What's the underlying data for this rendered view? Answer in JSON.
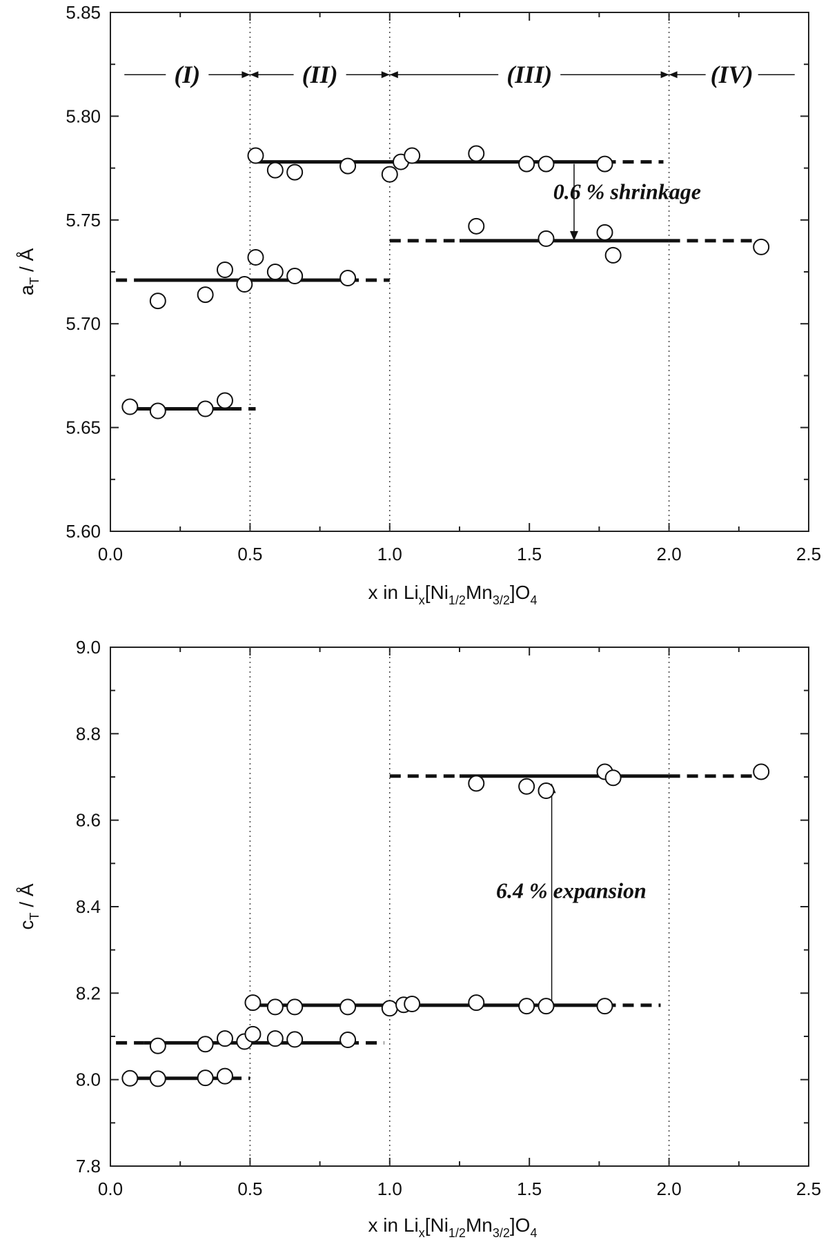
{
  "chart_data": [
    {
      "type": "scatter",
      "ylabel_main": "a",
      "ylabel_sub": "T",
      "ylabel_sep": "/",
      "ylabel_unit": "Å",
      "xlabel_main": "x  in  Li",
      "xlabel_parts": [
        "x",
        "[Ni",
        "1/2",
        "Mn",
        "3/2",
        "]O",
        "4"
      ],
      "xlim": [
        0,
        2.5
      ],
      "ylim": [
        5.6,
        5.85
      ],
      "x_ticks": [
        "0.0",
        "0.5",
        "1.0",
        "1.5",
        "2.0",
        "2.5"
      ],
      "x_tick_values": [
        0,
        0.5,
        1.0,
        1.5,
        2.0,
        2.5
      ],
      "y_ticks": [
        "5.60",
        "5.65",
        "5.70",
        "5.75",
        "5.80",
        "5.85"
      ],
      "y_tick_values": [
        5.6,
        5.65,
        5.7,
        5.75,
        5.8,
        5.85
      ],
      "region_dividers": [
        0.5,
        1.0,
        2.0
      ],
      "regions": [
        {
          "label": "(I)",
          "x_from": 0.05,
          "x_to": 0.5
        },
        {
          "label": "(II)",
          "x_from": 0.5,
          "x_to": 1.0
        },
        {
          "label": "(III)",
          "x_from": 1.0,
          "x_to": 2.0
        },
        {
          "label": "(IV)",
          "x_from": 2.0,
          "x_to": 2.45
        }
      ],
      "points": [
        {
          "x": 0.07,
          "y": 5.66
        },
        {
          "x": 0.17,
          "y": 5.658
        },
        {
          "x": 0.34,
          "y": 5.659
        },
        {
          "x": 0.41,
          "y": 5.663
        },
        {
          "x": 0.17,
          "y": 5.711
        },
        {
          "x": 0.34,
          "y": 5.714
        },
        {
          "x": 0.41,
          "y": 5.726
        },
        {
          "x": 0.48,
          "y": 5.719
        },
        {
          "x": 0.52,
          "y": 5.732
        },
        {
          "x": 0.59,
          "y": 5.725
        },
        {
          "x": 0.66,
          "y": 5.723
        },
        {
          "x": 0.85,
          "y": 5.722
        },
        {
          "x": 0.52,
          "y": 5.781
        },
        {
          "x": 0.59,
          "y": 5.774
        },
        {
          "x": 0.66,
          "y": 5.773
        },
        {
          "x": 0.85,
          "y": 5.776
        },
        {
          "x": 1.0,
          "y": 5.772
        },
        {
          "x": 1.04,
          "y": 5.778
        },
        {
          "x": 1.08,
          "y": 5.781
        },
        {
          "x": 1.31,
          "y": 5.782
        },
        {
          "x": 1.49,
          "y": 5.777
        },
        {
          "x": 1.56,
          "y": 5.777
        },
        {
          "x": 1.77,
          "y": 5.777
        },
        {
          "x": 1.31,
          "y": 5.747
        },
        {
          "x": 1.56,
          "y": 5.741
        },
        {
          "x": 1.77,
          "y": 5.744
        },
        {
          "x": 1.8,
          "y": 5.733
        },
        {
          "x": 2.33,
          "y": 5.737
        }
      ],
      "fits": [
        {
          "y": 5.659,
          "solid": [
            0.05,
            0.43
          ],
          "dash": [
            0.43,
            0.52
          ]
        },
        {
          "y": 5.721,
          "solid": [
            0.1,
            0.85
          ],
          "dash": [
            0.02,
            0.1,
            0.85,
            1.0
          ]
        },
        {
          "y": 5.778,
          "solid": [
            0.52,
            1.77
          ],
          "dash": [
            1.77,
            1.98
          ]
        },
        {
          "y": 5.74,
          "solid": [
            1.25,
            2.0
          ],
          "dash": [
            1.0,
            1.25,
            2.0,
            2.32
          ]
        }
      ],
      "annotation": {
        "text": "0.6 % shrinkage",
        "x": 1.85,
        "y": 5.76,
        "arrow_x": 1.66,
        "arrow_from": 5.777,
        "arrow_to": 5.74
      }
    },
    {
      "type": "scatter",
      "ylabel_main": "c",
      "ylabel_sub": "T",
      "ylabel_sep": "/",
      "ylabel_unit": "Å",
      "xlabel_main": "x  in  Li",
      "xlabel_parts": [
        "x",
        "[Ni",
        "1/2",
        "Mn",
        "3/2",
        "]O",
        "4"
      ],
      "xlim": [
        0,
        2.5
      ],
      "ylim": [
        7.8,
        9.0
      ],
      "x_ticks": [
        "0.0",
        "0.5",
        "1.0",
        "1.5",
        "2.0",
        "2.5"
      ],
      "x_tick_values": [
        0,
        0.5,
        1.0,
        1.5,
        2.0,
        2.5
      ],
      "y_ticks": [
        "7.8",
        "8.0",
        "8.2",
        "8.4",
        "8.6",
        "8.8",
        "9.0"
      ],
      "y_tick_values": [
        7.8,
        8.0,
        8.2,
        8.4,
        8.6,
        8.8,
        9.0
      ],
      "region_dividers": [
        0.5,
        1.0,
        2.0
      ],
      "points": [
        {
          "x": 0.07,
          "y": 8.003
        },
        {
          "x": 0.17,
          "y": 8.002
        },
        {
          "x": 0.34,
          "y": 8.004
        },
        {
          "x": 0.41,
          "y": 8.008
        },
        {
          "x": 0.17,
          "y": 8.078
        },
        {
          "x": 0.34,
          "y": 8.082
        },
        {
          "x": 0.41,
          "y": 8.095
        },
        {
          "x": 0.48,
          "y": 8.088
        },
        {
          "x": 0.51,
          "y": 8.105
        },
        {
          "x": 0.59,
          "y": 8.095
        },
        {
          "x": 0.66,
          "y": 8.093
        },
        {
          "x": 0.85,
          "y": 8.092
        },
        {
          "x": 0.51,
          "y": 8.178
        },
        {
          "x": 0.59,
          "y": 8.168
        },
        {
          "x": 0.66,
          "y": 8.168
        },
        {
          "x": 0.85,
          "y": 8.168
        },
        {
          "x": 1.0,
          "y": 8.165
        },
        {
          "x": 1.05,
          "y": 8.173
        },
        {
          "x": 1.08,
          "y": 8.175
        },
        {
          "x": 1.31,
          "y": 8.178
        },
        {
          "x": 1.49,
          "y": 8.17
        },
        {
          "x": 1.56,
          "y": 8.17
        },
        {
          "x": 1.77,
          "y": 8.17
        },
        {
          "x": 1.31,
          "y": 8.685
        },
        {
          "x": 1.49,
          "y": 8.678
        },
        {
          "x": 1.56,
          "y": 8.668
        },
        {
          "x": 1.77,
          "y": 8.712
        },
        {
          "x": 1.8,
          "y": 8.698
        },
        {
          "x": 2.33,
          "y": 8.712
        }
      ],
      "fits": [
        {
          "y": 8.003,
          "solid": [
            0.05,
            0.43
          ],
          "dash": [
            0.43,
            0.5
          ]
        },
        {
          "y": 8.085,
          "solid": [
            0.12,
            0.85
          ],
          "dash": [
            0.02,
            0.12,
            0.85,
            0.98
          ]
        },
        {
          "y": 8.172,
          "solid": [
            0.52,
            1.77
          ],
          "dash": [
            1.77,
            1.97
          ]
        },
        {
          "y": 8.702,
          "solid": [
            1.25,
            2.0
          ],
          "dash": [
            1.0,
            1.25,
            2.0,
            2.32
          ]
        }
      ],
      "annotation": {
        "text": "6.4 % expansion",
        "x": 1.65,
        "y": 8.42,
        "arrow_x": 1.58,
        "arrow_from": 8.172,
        "arrow_to": 8.685
      }
    }
  ]
}
